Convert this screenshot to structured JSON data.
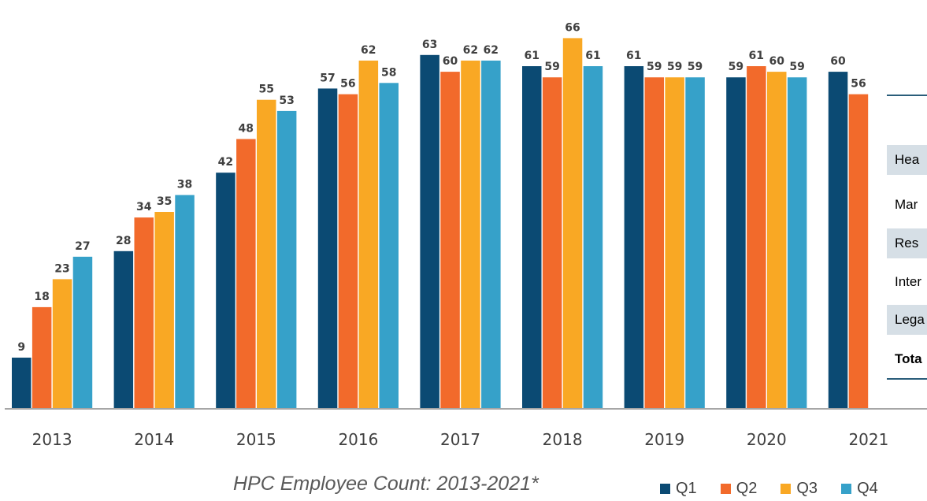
{
  "chart_data": {
    "type": "bar",
    "title": "HPC Employee Count: 2013-2021*",
    "categories": [
      "2013",
      "2014",
      "2015",
      "2016",
      "2017",
      "2018",
      "2019",
      "2020",
      "2021"
    ],
    "series": [
      {
        "name": "Q1",
        "color": "#0b4a73",
        "values": [
          9,
          28,
          42,
          57,
          63,
          61,
          61,
          59,
          60
        ]
      },
      {
        "name": "Q2",
        "color": "#f26a2b",
        "values": [
          18,
          34,
          48,
          56,
          60,
          59,
          59,
          61,
          56
        ]
      },
      {
        "name": "Q3",
        "color": "#f9a824",
        "values": [
          23,
          35,
          55,
          62,
          62,
          66,
          59,
          60,
          null
        ]
      },
      {
        "name": "Q4",
        "color": "#36a1c9",
        "values": [
          27,
          38,
          53,
          58,
          62,
          61,
          59,
          59,
          null
        ]
      }
    ],
    "data_labels": true,
    "legend_position": "bottom-right",
    "grid": false
  },
  "side_table": {
    "rows": [
      {
        "label": "Hea",
        "shaded": true,
        "bold": false
      },
      {
        "label": "Mar",
        "shaded": false,
        "bold": false
      },
      {
        "label": "Res",
        "shaded": true,
        "bold": false
      },
      {
        "label": "Inter",
        "shaded": false,
        "bold": false
      },
      {
        "label": "Lega",
        "shaded": true,
        "bold": false
      },
      {
        "label": "Tota",
        "shaded": false,
        "bold": true
      }
    ]
  }
}
